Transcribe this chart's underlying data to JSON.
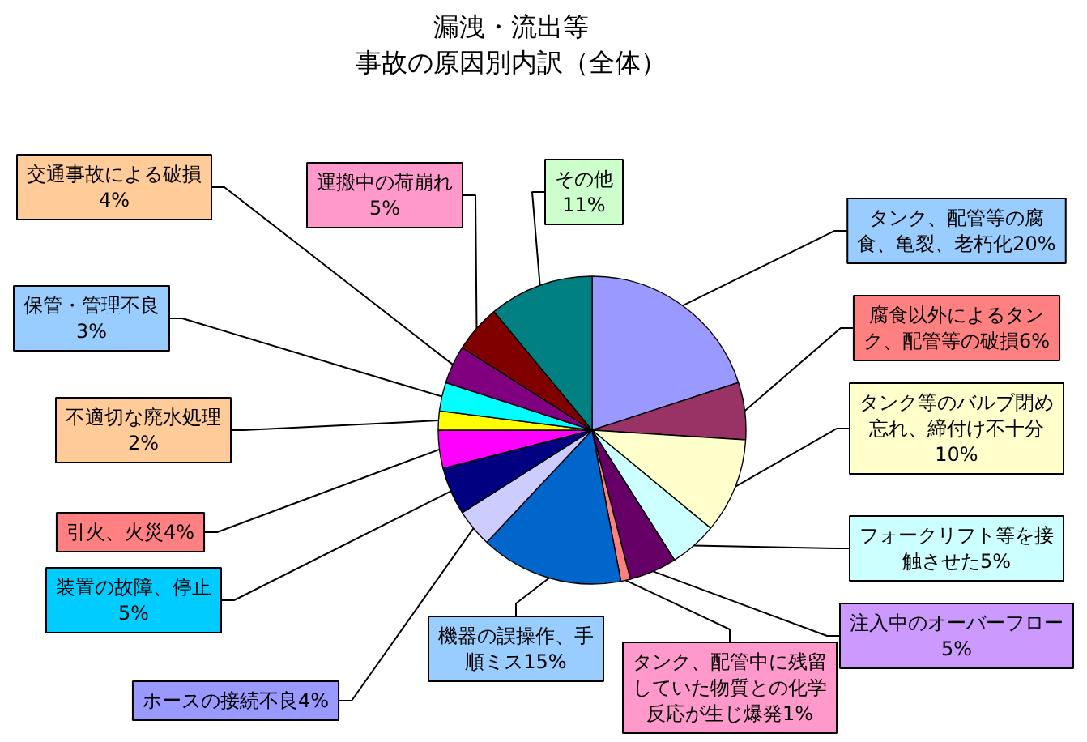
{
  "chart_data": {
    "type": "pie",
    "title": "漏洩・流出等",
    "subtitle": "事故の原因別内訳（全体）",
    "categories": [
      "タンク、配管等の腐食、亀裂、老朽化",
      "腐食以外によるタンク、配管等の破損",
      "タンク等のバルブ閉め忘れ、締付け不十分",
      "フォークリフト等を接触させた",
      "注入中のオーバーフロー",
      "タンク、配管中に残留していた物質との化学反応が生じ爆発",
      "機器の誤操作、手順ミス",
      "ホースの接続不良",
      "装置の故障、停止",
      "引火、火災",
      "不適切な廃水処理",
      "保管・管理不良",
      "交通事故による破損",
      "運搬中の荷崩れ",
      "その他"
    ],
    "values": [
      20,
      6,
      10,
      5,
      5,
      1,
      15,
      4,
      5,
      4,
      2,
      3,
      4,
      5,
      11
    ],
    "value_labels": [
      "20%",
      "6%",
      "10%",
      "5%",
      "5%",
      "1%",
      "15%",
      "4%",
      "5%",
      "4%",
      "2%",
      "3%",
      "4%",
      "5%",
      "11%"
    ],
    "colors": [
      "#9999ff",
      "#993366",
      "#ffffcc",
      "#ccffff",
      "#660066",
      "#ff8080",
      "#0066cc",
      "#ccccff",
      "#000080",
      "#ff00ff",
      "#ffff00",
      "#00ffff",
      "#800080",
      "#800000",
      "#008080"
    ]
  }
}
